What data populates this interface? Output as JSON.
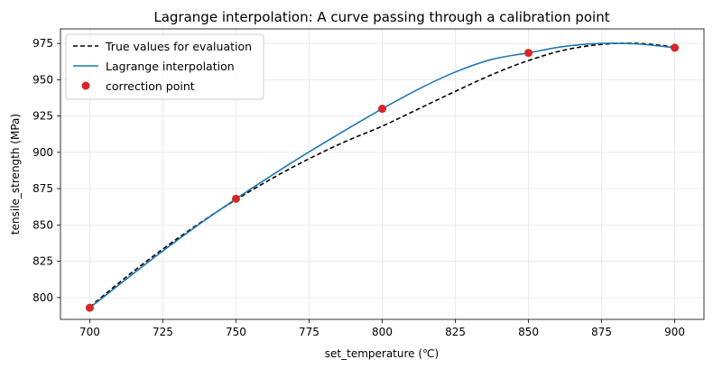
{
  "chart_data": {
    "type": "line",
    "title": "Lagrange interpolation: A curve passing through a calibration point",
    "xlabel": "set_temperature (℃)",
    "ylabel": "tensile_strength (MPa)",
    "xlim": [
      690,
      910
    ],
    "ylim": [
      785,
      985
    ],
    "xticks": [
      700,
      725,
      750,
      775,
      800,
      825,
      850,
      875,
      900
    ],
    "yticks": [
      800,
      825,
      850,
      875,
      900,
      925,
      950,
      975
    ],
    "grid": true,
    "legend_position": "top-left",
    "series": [
      {
        "name": "True values for evaluation",
        "style": "dashed",
        "color": "#000000",
        "x": [
          700,
          712.5,
          725,
          737.5,
          750,
          762.5,
          775,
          787.5,
          800,
          812.5,
          825,
          837.5,
          850,
          862.5,
          875,
          887.5,
          900
        ],
        "y": [
          793.5,
          814.2,
          833.4,
          851.1,
          867.4,
          882.2,
          895.6,
          907.5,
          918.0,
          930.0,
          942.0,
          953.5,
          963.2,
          970.5,
          974.3,
          975.0,
          972.5
        ]
      },
      {
        "name": "Lagrange interpolation",
        "style": "solid",
        "color": "#1f77b4",
        "x": [
          700,
          712.5,
          725,
          737.5,
          750,
          762.5,
          775,
          787.5,
          800,
          812.5,
          825,
          837.5,
          850,
          862.5,
          875,
          887.5,
          900
        ],
        "y": [
          793,
          812.7,
          832.1,
          850.6,
          868,
          884.5,
          900.3,
          915.4,
          930,
          943.6,
          955.3,
          964,
          968.5,
          973,
          975,
          974.6,
          972
        ]
      },
      {
        "name": "correction point",
        "style": "markers",
        "color": "#d62728",
        "x": [
          700,
          750,
          800,
          850,
          900
        ],
        "y": [
          793,
          868,
          930,
          968.5,
          972
        ]
      }
    ]
  }
}
